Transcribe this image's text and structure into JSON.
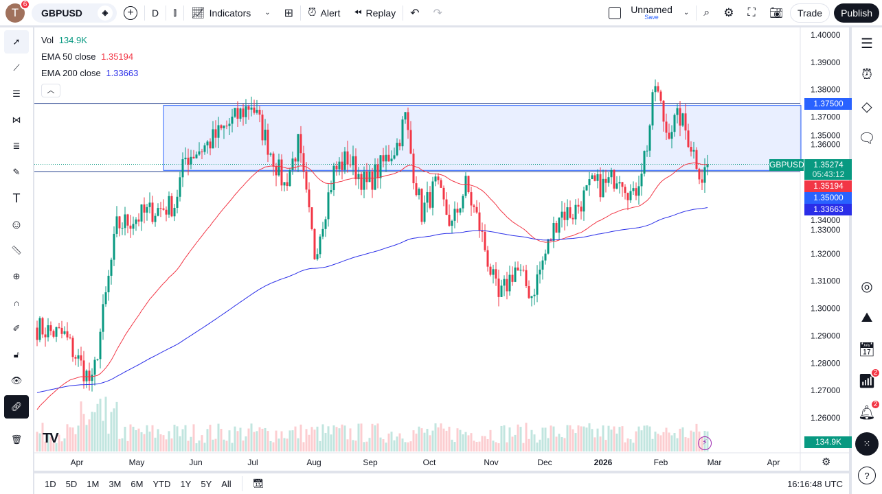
{
  "topbar": {
    "avatar": "T",
    "avatar_badge": "6",
    "symbol": "GBPUSD",
    "interval": "D",
    "indicators": "Indicators",
    "alert": "Alert",
    "replay": "Replay",
    "layout_name": "Unnamed",
    "layout_save": "Save",
    "trade": "Trade",
    "publish": "Publish"
  },
  "legend": {
    "vol_label": "Vol",
    "vol_value": "134.9K",
    "ema50_label": "EMA 50 close",
    "ema50_value": "1.35194",
    "ema200_label": "EMA 200 close",
    "ema200_value": "1.33663"
  },
  "colors": {
    "up": "#089981",
    "down": "#f23645",
    "ema50": "#f23645",
    "ema200": "#2a2ee8",
    "rect": "#2962ff",
    "accent": "#2962ff"
  },
  "price_axis": {
    "ticks": [
      "1.40000",
      "1.39000",
      "1.38000",
      "1.37000",
      "1.36000",
      "1.35000",
      "1.34000",
      "1.33000",
      "1.32000",
      "1.31000",
      "1.30000",
      "1.29000",
      "1.28000",
      "1.27000",
      "1.26000"
    ],
    "tick_values": [
      1.4,
      1.39,
      1.38,
      1.37,
      1.36,
      1.35,
      1.34,
      1.33,
      1.32,
      1.31,
      1.3,
      1.29,
      1.28,
      1.27,
      1.26
    ],
    "level_1375": "1.37500",
    "current": "1.35274",
    "countdown": "05:43:12",
    "ema50": "1.35194",
    "level_135": "1.35000",
    "ema200": "1.33663",
    "symbol_tag": "GBPUSD",
    "vol_tag": "134.9K"
  },
  "time_axis": {
    "labels": [
      "Apr",
      "May",
      "Jun",
      "Jul",
      "Aug",
      "Sep",
      "Oct",
      "Nov",
      "Dec",
      "2026",
      "Feb",
      "Mar",
      "Apr"
    ]
  },
  "bottombar": {
    "timeframes": [
      "1D",
      "5D",
      "1M",
      "3M",
      "6M",
      "YTD",
      "1Y",
      "5Y",
      "All"
    ],
    "clock": "16:16:48 UTC"
  },
  "sidebar": {
    "badge_ideas": "2",
    "badge_alerts": "2"
  },
  "chart_data": {
    "type": "candlestick",
    "symbol": "GBPUSD",
    "interval": "D",
    "ylim": [
      1.26,
      1.4
    ],
    "anchors": [
      [
        0,
        1.293
      ],
      [
        10,
        1.29
      ],
      [
        20,
        1.272
      ],
      [
        29,
        1.33
      ],
      [
        40,
        1.335
      ],
      [
        50,
        1.338
      ],
      [
        54,
        1.355
      ],
      [
        62,
        1.36
      ],
      [
        78,
        1.375
      ],
      [
        90,
        1.345
      ],
      [
        95,
        1.36
      ],
      [
        101,
        1.32
      ],
      [
        108,
        1.35
      ],
      [
        113,
        1.355
      ],
      [
        120,
        1.345
      ],
      [
        131,
        1.36
      ],
      [
        134,
        1.37
      ],
      [
        137,
        1.35
      ],
      [
        140,
        1.335
      ],
      [
        145,
        1.345
      ],
      [
        151,
        1.33
      ],
      [
        156,
        1.345
      ],
      [
        161,
        1.33
      ],
      [
        166,
        1.31
      ],
      [
        168,
        1.303
      ],
      [
        174,
        1.315
      ],
      [
        180,
        1.305
      ],
      [
        185,
        1.32
      ],
      [
        190,
        1.335
      ],
      [
        195,
        1.335
      ],
      [
        202,
        1.345
      ],
      [
        207,
        1.345
      ],
      [
        212,
        1.35
      ],
      [
        217,
        1.34
      ],
      [
        222,
        1.36
      ],
      [
        225,
        1.382
      ],
      [
        229,
        1.365
      ],
      [
        234,
        1.37
      ],
      [
        238,
        1.36
      ],
      [
        242,
        1.348
      ],
      [
        244,
        1.3527
      ]
    ],
    "ema50_start": 1.262,
    "ema200_start": 1.269,
    "box": {
      "top": 1.375,
      "bottom": 1.3505
    },
    "hlines": [
      1.375,
      1.35
    ]
  }
}
